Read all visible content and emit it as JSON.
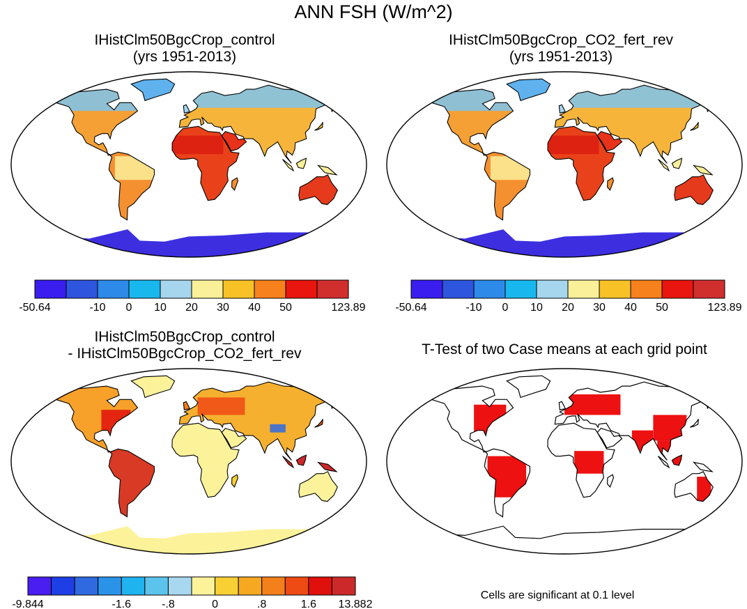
{
  "page": {
    "title": "ANN FSH (W/m^2)"
  },
  "panels": [
    {
      "title_line1": "IHistClm50BgcCrop_control",
      "title_line2": "(yrs 1951-2013)",
      "type": "absolute",
      "colorbar": {
        "colors": [
          "#3a1ef0",
          "#2e55dd",
          "#2e8ae8",
          "#18b8ee",
          "#a6d6ee",
          "#fbf09a",
          "#f8c227",
          "#f7811c",
          "#e8160e",
          "#d12e2e"
        ],
        "labels": [
          "-50.64",
          "-10",
          "0",
          "10",
          "20",
          "30",
          "40",
          "50",
          "123.89"
        ]
      }
    },
    {
      "title_line1": "IHistClm50BgcCrop_CO2_fert_rev",
      "title_line2": "(yrs 1951-2013)",
      "type": "absolute",
      "colorbar": {
        "colors": [
          "#3a1ef0",
          "#2e55dd",
          "#2e8ae8",
          "#18b8ee",
          "#a6d6ee",
          "#fbf09a",
          "#f8c227",
          "#f7811c",
          "#e8160e",
          "#d12e2e"
        ],
        "labels": [
          "-50.64",
          "-10",
          "0",
          "10",
          "20",
          "30",
          "40",
          "50",
          "123.89"
        ]
      }
    },
    {
      "title_line1": "IHistClm50BgcCrop_control",
      "title_line2": "- IHistClm50BgcCrop_CO2_fert_rev",
      "type": "difference",
      "colorbar": {
        "colors": [
          "#4a1ef0",
          "#1f3fe6",
          "#2f6ae0",
          "#2a93e8",
          "#1fb4f0",
          "#5cc4ec",
          "#a8d8f0",
          "#fcf29a",
          "#f8d034",
          "#f6a820",
          "#f3801b",
          "#ee4a14",
          "#e0100c",
          "#cc2a2a"
        ],
        "labels": [
          "-9.844",
          "-1.6",
          "-.8",
          "0",
          ".8",
          "1.6",
          "13.882"
        ]
      }
    },
    {
      "title_line1": "T-Test of two Case means at each grid point",
      "title_line2": "",
      "type": "significance",
      "note": "Cells are significant at 0.1 level"
    }
  ]
}
